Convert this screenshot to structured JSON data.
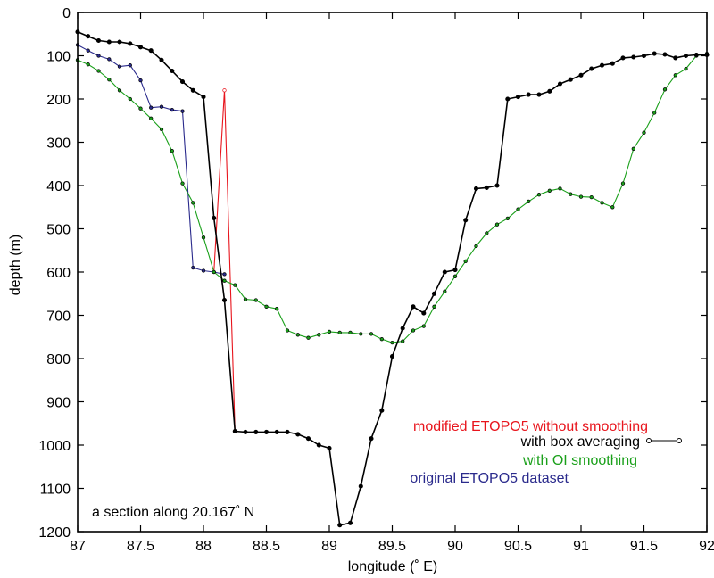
{
  "chart_data": {
    "type": "line",
    "xlabel": "longitude  (˚ E)",
    "ylabel": "depth (m)",
    "xlim": [
      87,
      92
    ],
    "ylim": [
      0,
      1200
    ],
    "y_inverted": true,
    "x_ticks": [
      "87",
      "87.5",
      "88",
      "88.5",
      "89",
      "89.5",
      "90",
      "90.5",
      "91",
      "91.5",
      "92"
    ],
    "y_ticks": [
      "0",
      "100",
      "200",
      "300",
      "400",
      "500",
      "600",
      "700",
      "800",
      "900",
      "1000",
      "1100",
      "1200"
    ],
    "grid": false,
    "annotation": "a section along 20.167˚ N",
    "legend": {
      "placement": "bottom-right",
      "entries": [
        {
          "text": "modified ETOPO5 without smoothing",
          "color": "#e8141c"
        },
        {
          "text": "with box averaging",
          "color": "#000000"
        },
        {
          "text": "with OI smoothing",
          "color": "#1aa01a"
        },
        {
          "text": "original ETOPO5 dataset",
          "color": "#2a2a8c"
        }
      ]
    },
    "series": [
      {
        "name": "modified ETOPO5 without smoothing",
        "color": "#e8141c",
        "x": [
          88.083,
          88.167,
          88.25
        ],
        "y": [
          600,
          180,
          968
        ]
      },
      {
        "name": "original ETOPO5 dataset",
        "color": "#2a2a8c",
        "x": [
          87,
          87.083,
          87.167,
          87.25,
          87.333,
          87.417,
          87.5,
          87.583,
          87.667,
          87.75,
          87.833,
          87.917,
          88,
          88.083,
          88.167
        ],
        "y": [
          75,
          88,
          100,
          108,
          125,
          122,
          157,
          220,
          218,
          225,
          228,
          590,
          597,
          600,
          605
        ]
      },
      {
        "name": "with OI smoothing",
        "color": "#1aa01a",
        "x": [
          87,
          87.083,
          87.167,
          87.25,
          87.333,
          87.417,
          87.5,
          87.583,
          87.667,
          87.75,
          87.833,
          87.917,
          88,
          88.083,
          88.167,
          88.25,
          88.333,
          88.417,
          88.5,
          88.583,
          88.667,
          88.75,
          88.833,
          88.917,
          89,
          89.083,
          89.167,
          89.25,
          89.333,
          89.417,
          89.5,
          89.583,
          89.667,
          89.75,
          89.833,
          89.917,
          90,
          90.083,
          90.167,
          90.25,
          90.333,
          90.417,
          90.5,
          90.583,
          90.667,
          90.75,
          90.833,
          90.917,
          91,
          91.083,
          91.167,
          91.25,
          91.333,
          91.417,
          91.5,
          91.583,
          91.667,
          91.75,
          91.833,
          91.917,
          92
        ],
        "y": [
          110,
          120,
          135,
          155,
          180,
          200,
          222,
          245,
          270,
          320,
          395,
          440,
          520,
          600,
          620,
          630,
          663,
          665,
          680,
          685,
          735,
          745,
          752,
          745,
          738,
          740,
          740,
          743,
          743,
          755,
          763,
          760,
          735,
          725,
          680,
          645,
          610,
          575,
          540,
          510,
          490,
          476,
          455,
          437,
          421,
          412,
          407,
          420,
          426,
          427,
          440,
          450,
          395,
          315,
          278,
          232,
          178,
          145,
          130,
          100,
          95
        ]
      },
      {
        "name": "with box averaging",
        "color": "#000000",
        "x": [
          87,
          87.083,
          87.167,
          87.25,
          87.333,
          87.417,
          87.5,
          87.583,
          87.667,
          87.75,
          87.833,
          87.917,
          88,
          88.083,
          88.167,
          88.25,
          88.333,
          88.417,
          88.5,
          88.583,
          88.667,
          88.75,
          88.833,
          88.917,
          89,
          89.083,
          89.167,
          89.25,
          89.333,
          89.417,
          89.5,
          89.583,
          89.667,
          89.75,
          89.833,
          89.917,
          90,
          90.083,
          90.167,
          90.25,
          90.333,
          90.417,
          90.5,
          90.583,
          90.667,
          90.75,
          90.833,
          90.917,
          91,
          91.083,
          91.167,
          91.25,
          91.333,
          91.417,
          91.5,
          91.583,
          91.667,
          91.75,
          91.833,
          91.917,
          92
        ],
        "y": [
          45,
          55,
          65,
          68,
          68,
          72,
          80,
          88,
          110,
          135,
          160,
          180,
          195,
          475,
          665,
          968,
          970,
          970,
          970,
          970,
          970,
          975,
          985,
          1000,
          1007,
          1185,
          1180,
          1095,
          985,
          920,
          795,
          730,
          680,
          695,
          650,
          600,
          595,
          480,
          407,
          405,
          400,
          200,
          195,
          190,
          190,
          182,
          165,
          155,
          145,
          130,
          122,
          118,
          105,
          103,
          100,
          95,
          97,
          105,
          100,
          98,
          98
        ]
      }
    ]
  }
}
